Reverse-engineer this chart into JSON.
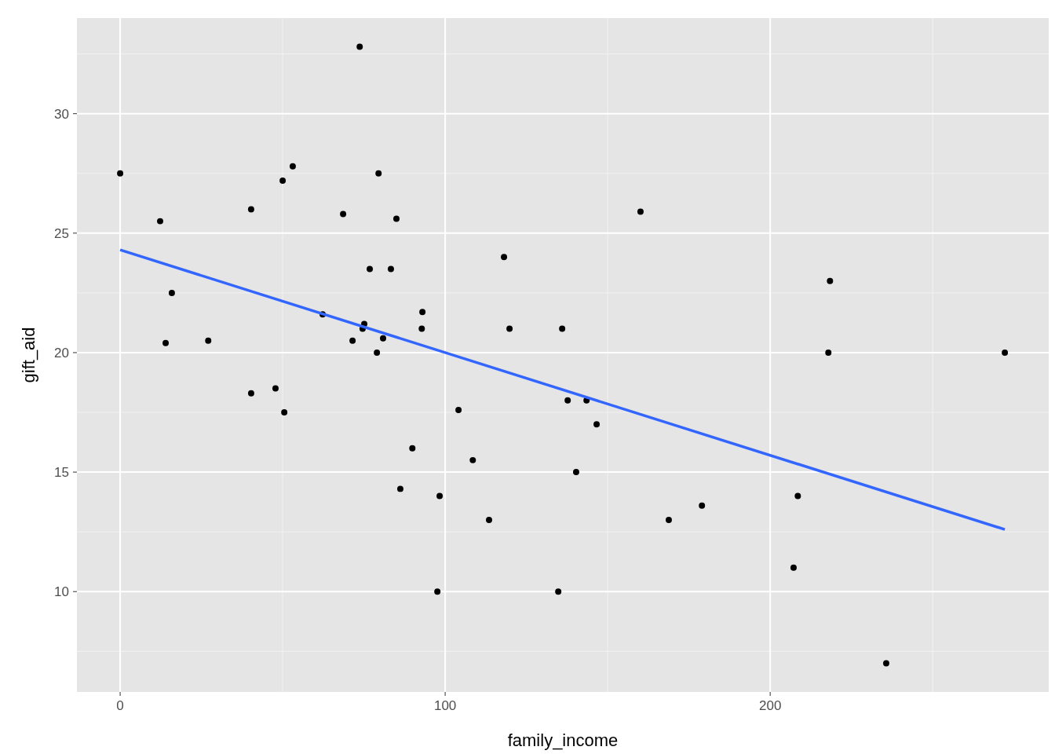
{
  "chart_data": {
    "type": "scatter",
    "xlabel": "family_income",
    "ylabel": "gift_aid",
    "xlim": [
      -13.3,
      285.7
    ],
    "ylim": [
      5.8,
      34.0
    ],
    "xticks": [
      0,
      100,
      200
    ],
    "yticks": [
      10,
      15,
      20,
      25,
      30
    ],
    "grid": true,
    "series": [
      {
        "marker": "circle",
        "color": "#000000",
        "x": [
          0,
          12.3,
          14.0,
          15.9,
          27.1,
          40.3,
          40.3,
          47.8,
          50.0,
          50.5,
          53.1,
          62.3,
          68.6,
          71.5,
          73.7,
          74.6,
          75.1,
          76.8,
          79.0,
          79.5,
          80.9,
          83.3,
          85.0,
          86.2,
          89.9,
          92.8,
          93.0,
          97.6,
          98.3,
          104.1,
          108.5,
          113.5,
          118.1,
          119.8,
          134.8,
          136.0,
          137.7,
          140.3,
          143.5,
          146.6,
          160.1,
          168.8,
          179.0,
          207.2,
          208.5,
          217.9,
          218.4,
          235.7,
          272.2
        ],
        "values": [
          27.5,
          25.5,
          20.4,
          22.5,
          20.5,
          26.0,
          18.3,
          18.5,
          27.2,
          17.5,
          27.8,
          21.6,
          25.8,
          20.5,
          32.8,
          21.0,
          21.2,
          23.5,
          20.0,
          27.5,
          20.6,
          23.5,
          25.6,
          14.3,
          16.0,
          21.0,
          21.7,
          10.0,
          14.0,
          17.6,
          15.5,
          13.0,
          24.0,
          21.0,
          10.0,
          21.0,
          18.0,
          15.0,
          18.0,
          17.0,
          25.9,
          13.0,
          13.6,
          11.0,
          14.0,
          20.0,
          23.0,
          7.0,
          20.0
        ]
      },
      {
        "type": "line",
        "color": "#3366ff",
        "x": [
          0,
          272.2
        ],
        "values": [
          24.3,
          12.6
        ]
      }
    ]
  }
}
